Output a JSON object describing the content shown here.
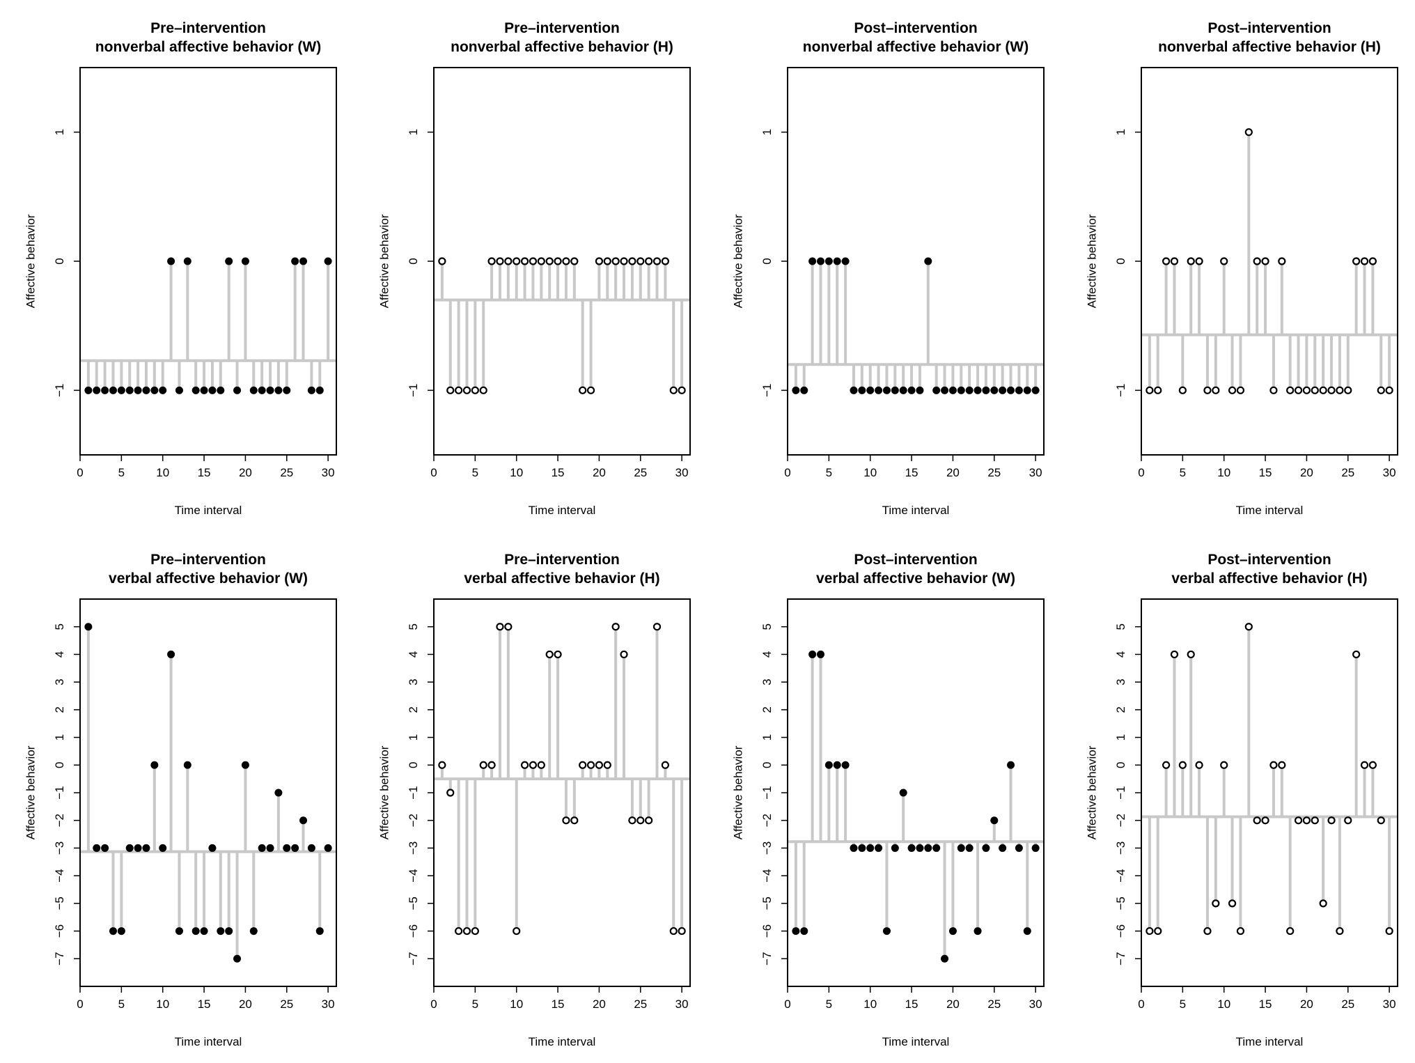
{
  "figure": {
    "background": "#ffffff",
    "stem_color": "#c8c8c8",
    "marker_color": "#000000"
  },
  "chart_data": [
    {
      "type": "stem",
      "row": 0,
      "col": 0,
      "title": [
        "Pre–intervention",
        "nonverbal affective behavior (W)"
      ],
      "xlabel": "Time interval",
      "ylabel": "Affective behavior",
      "xlim": [
        0,
        31
      ],
      "ylim": [
        -1.5,
        1.5
      ],
      "xticks": [
        0,
        5,
        10,
        15,
        20,
        25,
        30
      ],
      "yticks": [
        -1,
        0,
        1
      ],
      "marker": "filled",
      "baseline": -0.77,
      "x": [
        1,
        2,
        3,
        4,
        5,
        6,
        7,
        8,
        9,
        10,
        11,
        12,
        13,
        14,
        15,
        16,
        17,
        18,
        19,
        20,
        21,
        22,
        23,
        24,
        25,
        26,
        27,
        28,
        29,
        30
      ],
      "values": [
        -1,
        -1,
        -1,
        -1,
        -1,
        -1,
        -1,
        -1,
        -1,
        -1,
        0,
        -1,
        0,
        -1,
        -1,
        -1,
        -1,
        0,
        -1,
        0,
        -1,
        -1,
        -1,
        -1,
        -1,
        0,
        0,
        -1,
        -1,
        0
      ]
    },
    {
      "type": "stem",
      "row": 0,
      "col": 1,
      "title": [
        "Pre–intervention",
        "nonverbal affective behavior (H)"
      ],
      "xlabel": "Time interval",
      "ylabel": "Affective behavior",
      "xlim": [
        0,
        31
      ],
      "ylim": [
        -1.5,
        1.5
      ],
      "xticks": [
        0,
        5,
        10,
        15,
        20,
        25,
        30
      ],
      "yticks": [
        -1,
        0,
        1
      ],
      "marker": "open",
      "baseline": -0.3,
      "x": [
        1,
        2,
        3,
        4,
        5,
        6,
        7,
        8,
        9,
        10,
        11,
        12,
        13,
        14,
        15,
        16,
        17,
        18,
        19,
        20,
        21,
        22,
        23,
        24,
        25,
        26,
        27,
        28,
        29,
        30
      ],
      "values": [
        0,
        -1,
        -1,
        -1,
        -1,
        -1,
        0,
        0,
        0,
        0,
        0,
        0,
        0,
        0,
        0,
        0,
        0,
        -1,
        -1,
        0,
        0,
        0,
        0,
        0,
        0,
        0,
        0,
        0,
        -1,
        -1
      ]
    },
    {
      "type": "stem",
      "row": 0,
      "col": 2,
      "title": [
        "Post–intervention",
        "nonverbal affective behavior (W)"
      ],
      "xlabel": "Time interval",
      "ylabel": "Affective behavior",
      "xlim": [
        0,
        31
      ],
      "ylim": [
        -1.5,
        1.5
      ],
      "xticks": [
        0,
        5,
        10,
        15,
        20,
        25,
        30
      ],
      "yticks": [
        -1,
        0,
        1
      ],
      "marker": "filled",
      "baseline": -0.8,
      "x": [
        1,
        2,
        3,
        4,
        5,
        6,
        7,
        8,
        9,
        10,
        11,
        12,
        13,
        14,
        15,
        16,
        17,
        18,
        19,
        20,
        21,
        22,
        23,
        24,
        25,
        26,
        27,
        28,
        29,
        30
      ],
      "values": [
        -1,
        -1,
        0,
        0,
        0,
        0,
        0,
        -1,
        -1,
        -1,
        -1,
        -1,
        -1,
        -1,
        -1,
        -1,
        0,
        -1,
        -1,
        -1,
        -1,
        -1,
        -1,
        -1,
        -1,
        -1,
        -1,
        -1,
        -1,
        -1
      ]
    },
    {
      "type": "stem",
      "row": 0,
      "col": 3,
      "title": [
        "Post–intervention",
        "nonverbal affective behavior (H)"
      ],
      "xlabel": "Time interval",
      "ylabel": "Affective behavior",
      "xlim": [
        0,
        31
      ],
      "ylim": [
        -1.5,
        1.5
      ],
      "xticks": [
        0,
        5,
        10,
        15,
        20,
        25,
        30
      ],
      "yticks": [
        -1,
        0,
        1
      ],
      "marker": "open",
      "baseline": -0.57,
      "x": [
        1,
        2,
        3,
        4,
        5,
        6,
        7,
        8,
        9,
        10,
        11,
        12,
        13,
        14,
        15,
        16,
        17,
        18,
        19,
        20,
        21,
        22,
        23,
        24,
        25,
        26,
        27,
        28,
        29,
        30
      ],
      "values": [
        -1,
        -1,
        0,
        0,
        -1,
        0,
        0,
        -1,
        -1,
        0,
        -1,
        -1,
        1,
        0,
        0,
        -1,
        0,
        -1,
        -1,
        -1,
        -1,
        -1,
        -1,
        -1,
        -1,
        0,
        0,
        0,
        -1,
        -1
      ]
    },
    {
      "type": "stem",
      "row": 1,
      "col": 0,
      "title": [
        "Pre–intervention",
        "verbal affective behavior (W)"
      ],
      "xlabel": "Time interval",
      "ylabel": "Affective behavior",
      "xlim": [
        0,
        31
      ],
      "ylim": [
        -8,
        6
      ],
      "xticks": [
        0,
        5,
        10,
        15,
        20,
        25,
        30
      ],
      "yticks": [
        -7,
        -6,
        -5,
        -4,
        -3,
        -2,
        -1,
        0,
        1,
        2,
        3,
        4,
        5
      ],
      "marker": "filled",
      "baseline": -3.13,
      "x": [
        1,
        2,
        3,
        4,
        5,
        6,
        7,
        8,
        9,
        10,
        11,
        12,
        13,
        14,
        15,
        16,
        17,
        18,
        19,
        20,
        21,
        22,
        23,
        24,
        25,
        26,
        27,
        28,
        29,
        30
      ],
      "values": [
        5,
        -3,
        -3,
        -6,
        -6,
        -3,
        -3,
        -3,
        0,
        -3,
        4,
        -6,
        0,
        -6,
        -6,
        -3,
        -6,
        -6,
        -7,
        0,
        -6,
        -3,
        -3,
        -1,
        -3,
        -3,
        -2,
        -3,
        -6,
        -3
      ]
    },
    {
      "type": "stem",
      "row": 1,
      "col": 1,
      "title": [
        "Pre–intervention",
        "verbal affective behavior (H)"
      ],
      "xlabel": "Time interval",
      "ylabel": "Affective behavior",
      "xlim": [
        0,
        31
      ],
      "ylim": [
        -8,
        6
      ],
      "xticks": [
        0,
        5,
        10,
        15,
        20,
        25,
        30
      ],
      "yticks": [
        -7,
        -6,
        -5,
        -4,
        -3,
        -2,
        -1,
        0,
        1,
        2,
        3,
        4,
        5
      ],
      "marker": "open",
      "baseline": -0.5,
      "x": [
        1,
        2,
        3,
        4,
        5,
        6,
        7,
        8,
        9,
        10,
        11,
        12,
        13,
        14,
        15,
        16,
        17,
        18,
        19,
        20,
        21,
        22,
        23,
        24,
        25,
        26,
        27,
        28,
        29,
        30
      ],
      "values": [
        0,
        -1,
        -6,
        -6,
        -6,
        0,
        0,
        5,
        5,
        -6,
        0,
        0,
        0,
        4,
        4,
        -2,
        -2,
        0,
        0,
        0,
        0,
        5,
        4,
        -2,
        -2,
        -2,
        5,
        0,
        -6,
        -6
      ]
    },
    {
      "type": "stem",
      "row": 1,
      "col": 2,
      "title": [
        "Post–intervention",
        "verbal affective behavior (W)"
      ],
      "xlabel": "Time interval",
      "ylabel": "Affective behavior",
      "xlim": [
        0,
        31
      ],
      "ylim": [
        -8,
        6
      ],
      "xticks": [
        0,
        5,
        10,
        15,
        20,
        25,
        30
      ],
      "yticks": [
        -7,
        -6,
        -5,
        -4,
        -3,
        -2,
        -1,
        0,
        1,
        2,
        3,
        4,
        5
      ],
      "marker": "filled",
      "baseline": -2.77,
      "x": [
        1,
        2,
        3,
        4,
        5,
        6,
        7,
        8,
        9,
        10,
        11,
        12,
        13,
        14,
        15,
        16,
        17,
        18,
        19,
        20,
        21,
        22,
        23,
        24,
        25,
        26,
        27,
        28,
        29,
        30
      ],
      "values": [
        -6,
        -6,
        4,
        4,
        0,
        0,
        0,
        -3,
        -3,
        -3,
        -3,
        -6,
        -3,
        -1,
        -3,
        -3,
        -3,
        -3,
        -7,
        -6,
        -3,
        -3,
        -6,
        -3,
        -2,
        -3,
        0,
        -3,
        -6,
        -3
      ]
    },
    {
      "type": "stem",
      "row": 1,
      "col": 3,
      "title": [
        "Post–intervention",
        "verbal affective behavior (H)"
      ],
      "xlabel": "Time interval",
      "ylabel": "Affective behavior",
      "xlim": [
        0,
        31
      ],
      "ylim": [
        -8,
        6
      ],
      "xticks": [
        0,
        5,
        10,
        15,
        20,
        25,
        30
      ],
      "yticks": [
        -7,
        -6,
        -5,
        -4,
        -3,
        -2,
        -1,
        0,
        1,
        2,
        3,
        4,
        5
      ],
      "marker": "open",
      "baseline": -1.87,
      "x": [
        1,
        2,
        3,
        4,
        5,
        6,
        7,
        8,
        9,
        10,
        11,
        12,
        13,
        14,
        15,
        16,
        17,
        18,
        19,
        20,
        21,
        22,
        23,
        24,
        25,
        26,
        27,
        28,
        29,
        30
      ],
      "values": [
        -6,
        -6,
        0,
        4,
        0,
        4,
        0,
        -6,
        -5,
        0,
        -5,
        -6,
        5,
        -2,
        -2,
        0,
        0,
        -6,
        -2,
        -2,
        -2,
        -5,
        -2,
        -6,
        -2,
        4,
        0,
        0,
        -2,
        -6
      ]
    }
  ]
}
